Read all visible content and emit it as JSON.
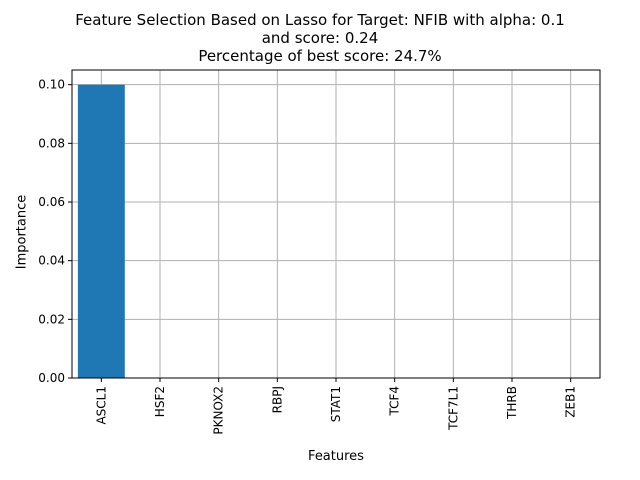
{
  "chart_data": {
    "type": "bar",
    "title_lines": [
      "Feature Selection Based on Lasso for Target: NFIB with alpha: 0.1",
      "and score: 0.24",
      "Percentage of best score: 24.7%"
    ],
    "xlabel": "Features",
    "ylabel": "Importance",
    "categories": [
      "ASCL1",
      "HSF2",
      "PKNOX2",
      "RBPJ",
      "STAT1",
      "TCF4",
      "TCF7L1",
      "THRB",
      "ZEB1"
    ],
    "values": [
      0.1,
      0.0,
      0.0,
      0.0,
      0.0,
      0.0,
      0.0,
      0.0,
      0.0
    ],
    "ylim": [
      0.0,
      0.105
    ],
    "yticks": [
      "0.00",
      "0.02",
      "0.04",
      "0.06",
      "0.08",
      "0.10"
    ],
    "grid": true,
    "colors": {
      "bar": "#1f77b4",
      "grid": "#b0b0b0",
      "axis": "#000000"
    }
  }
}
